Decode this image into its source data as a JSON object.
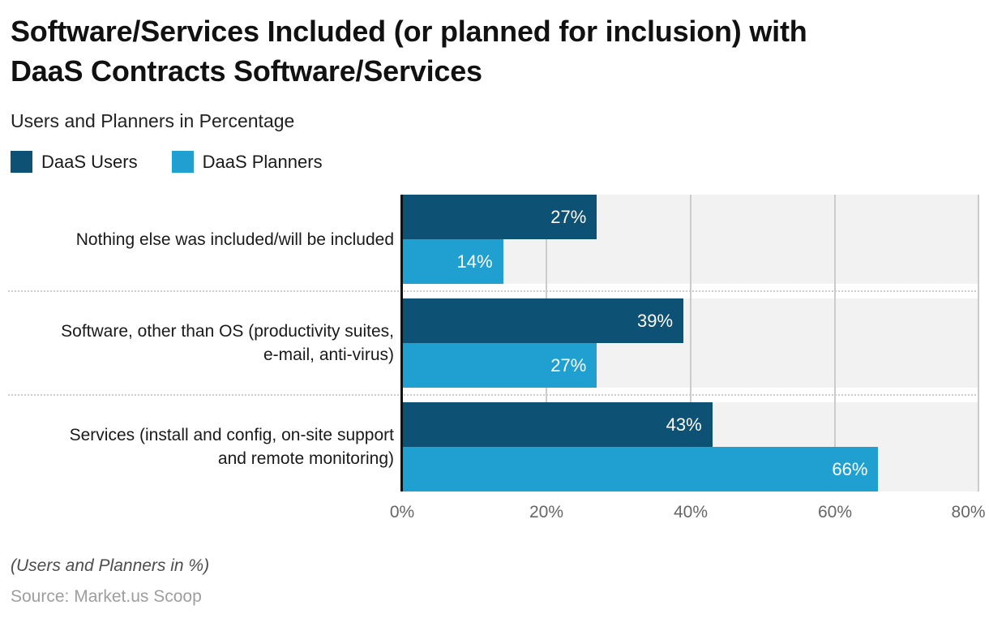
{
  "title": "Software/Services Included (or planned for inclusion) with\nDaaS Contracts Software/Services",
  "subtitle": "Users and Planners in Percentage",
  "legend": [
    {
      "label": "DaaS Users",
      "color": "#0d5175"
    },
    {
      "label": "DaaS Planners",
      "color": "#20a0d1"
    }
  ],
  "footnote": "(Users and Planners in %)",
  "source": "Source: Market.us Scoop",
  "chart_data": {
    "type": "bar",
    "orientation": "horizontal",
    "title": "Software/Services Included (or planned for inclusion) with DaaS Contracts Software/Services",
    "subtitle": "Users and Planners in Percentage",
    "categories": [
      "Nothing else was included/will be included",
      "Software, other than OS (productivity suites,\ne-mail, anti-virus)",
      "Services (install and config, on-site support\nand remote monitoring)"
    ],
    "series": [
      {
        "name": "DaaS Users",
        "color": "#0d5175",
        "values": [
          27,
          39,
          43
        ]
      },
      {
        "name": "DaaS Planners",
        "color": "#20a0d1",
        "values": [
          14,
          27,
          66
        ]
      }
    ],
    "value_suffix": "%",
    "xlim": [
      0,
      80
    ],
    "x_ticks": [
      "0%",
      "20%",
      "40%",
      "60%",
      "80%"
    ],
    "grid": true,
    "legend_position": "top-left",
    "plot_background": "#f2f2f2",
    "gridline_color": "#cccccc"
  }
}
